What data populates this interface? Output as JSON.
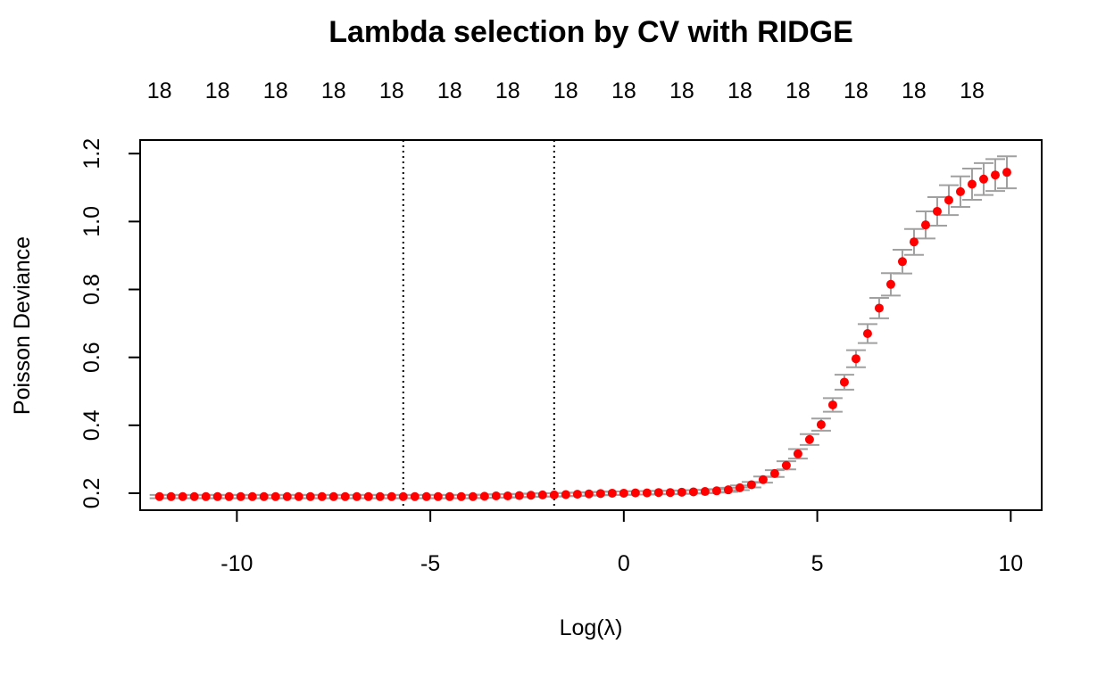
{
  "chart_data": {
    "type": "scatter",
    "title": "Lambda selection by CV with RIDGE",
    "xlabel": "Log(λ)",
    "ylabel": "Poisson Deviance",
    "xlim": [
      -12.5,
      10.8
    ],
    "ylim": [
      0.15,
      1.24
    ],
    "x_ticks": [
      -10,
      -5,
      0,
      5,
      10
    ],
    "x_tick_labels": [
      "-10",
      "-5",
      "0",
      "5",
      "10"
    ],
    "y_ticks": [
      0.2,
      0.4,
      0.6,
      0.8,
      1.0,
      1.2
    ],
    "y_tick_labels": [
      "0.2",
      "0.4",
      "0.6",
      "0.8",
      "1.0",
      "1.2"
    ],
    "top_axis": {
      "positions": [
        -12.0,
        -10.5,
        -9.0,
        -7.5,
        -6.0,
        -4.5,
        -3.0,
        -1.5,
        0.0,
        1.5,
        3.0,
        4.5,
        6.0,
        7.5,
        9.0
      ],
      "labels": [
        "18",
        "18",
        "18",
        "18",
        "18",
        "18",
        "18",
        "18",
        "18",
        "18",
        "18",
        "18",
        "18",
        "18",
        "18"
      ]
    },
    "vlines": [
      -5.7,
      -1.8
    ],
    "series": [
      {
        "x": [
          -12.0,
          -11.7,
          -11.4,
          -11.1,
          -10.8,
          -10.5,
          -10.2,
          -9.9,
          -9.6,
          -9.3,
          -9.0,
          -8.7,
          -8.4,
          -8.1,
          -7.8,
          -7.5,
          -7.2,
          -6.9,
          -6.6,
          -6.3,
          -6.0,
          -5.7,
          -5.4,
          -5.1,
          -4.8,
          -4.5,
          -4.2,
          -3.9,
          -3.6,
          -3.3,
          -3.0,
          -2.7,
          -2.4,
          -2.1,
          -1.8,
          -1.5,
          -1.2,
          -0.9,
          -0.6,
          -0.3,
          0.0,
          0.3,
          0.6,
          0.9,
          1.2,
          1.5,
          1.8,
          2.1,
          2.4,
          2.7,
          3.0,
          3.3,
          3.6,
          3.9,
          4.2,
          4.5,
          4.8,
          5.1,
          5.4,
          5.7,
          6.0,
          6.3,
          6.6,
          6.9,
          7.2,
          7.5,
          7.8,
          8.1,
          8.4,
          8.7,
          9.0,
          9.3,
          9.6,
          9.9
        ],
        "y": [
          0.19,
          0.19,
          0.19,
          0.19,
          0.19,
          0.19,
          0.19,
          0.19,
          0.19,
          0.19,
          0.19,
          0.19,
          0.19,
          0.19,
          0.19,
          0.19,
          0.19,
          0.19,
          0.19,
          0.19,
          0.19,
          0.19,
          0.19,
          0.19,
          0.19,
          0.19,
          0.19,
          0.19,
          0.191,
          0.192,
          0.192,
          0.193,
          0.194,
          0.195,
          0.195,
          0.196,
          0.197,
          0.198,
          0.199,
          0.2,
          0.2,
          0.201,
          0.201,
          0.202,
          0.202,
          0.203,
          0.204,
          0.205,
          0.207,
          0.21,
          0.216,
          0.225,
          0.24,
          0.258,
          0.282,
          0.316,
          0.358,
          0.402,
          0.46,
          0.527,
          0.596,
          0.67,
          0.745,
          0.815,
          0.882,
          0.94,
          0.99,
          1.03,
          1.063,
          1.088,
          1.11,
          1.125,
          1.137,
          1.145
        ],
        "err": [
          0.005,
          0.005,
          0.005,
          0.005,
          0.005,
          0.005,
          0.005,
          0.005,
          0.005,
          0.005,
          0.005,
          0.005,
          0.005,
          0.005,
          0.005,
          0.005,
          0.005,
          0.005,
          0.005,
          0.005,
          0.005,
          0.005,
          0.005,
          0.005,
          0.005,
          0.005,
          0.005,
          0.005,
          0.005,
          0.005,
          0.005,
          0.005,
          0.005,
          0.005,
          0.005,
          0.005,
          0.005,
          0.005,
          0.005,
          0.005,
          0.005,
          0.005,
          0.005,
          0.005,
          0.005,
          0.005,
          0.005,
          0.005,
          0.005,
          0.006,
          0.007,
          0.008,
          0.009,
          0.01,
          0.012,
          0.014,
          0.016,
          0.018,
          0.02,
          0.022,
          0.025,
          0.028,
          0.03,
          0.033,
          0.035,
          0.038,
          0.04,
          0.042,
          0.044,
          0.045,
          0.046,
          0.047,
          0.047,
          0.047
        ]
      }
    ],
    "point_color": "#ff0000",
    "errorbar_color": "#a0a0a0",
    "grid": false,
    "legend": "none"
  }
}
